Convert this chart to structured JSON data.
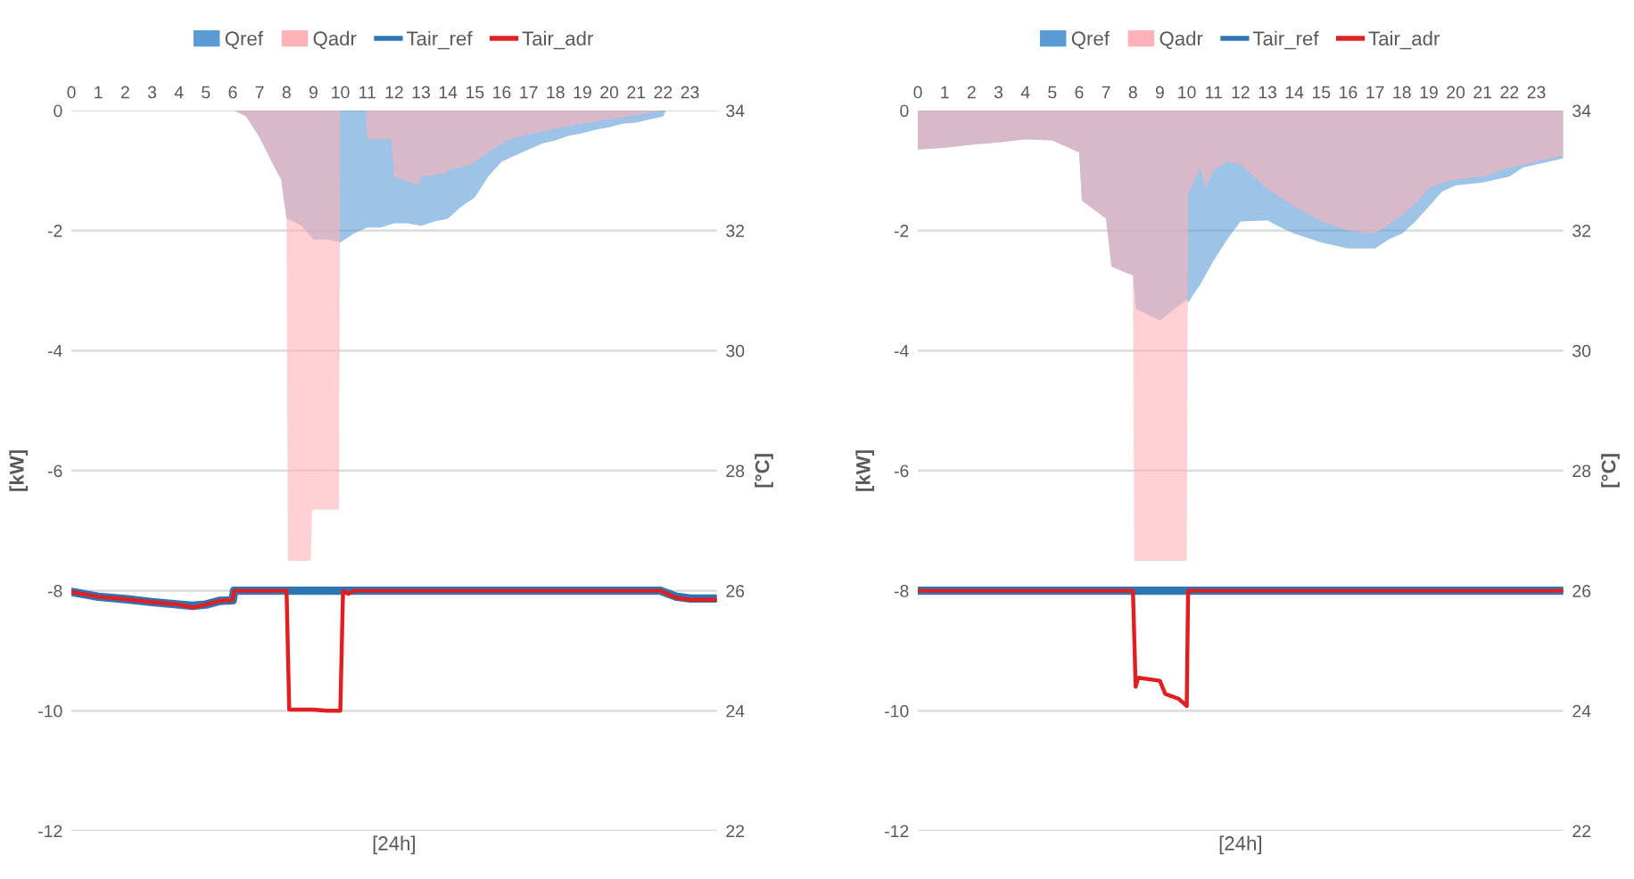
{
  "chart_data": [
    {
      "type": "area",
      "xlabel": "[24h]",
      "ylabel": "[kW]",
      "y2label": "[°C]",
      "xlim": [
        0,
        24
      ],
      "xticks": [
        0,
        1,
        2,
        3,
        4,
        5,
        6,
        7,
        8,
        9,
        10,
        11,
        12,
        13,
        14,
        15,
        16,
        17,
        18,
        19,
        20,
        21,
        22,
        23
      ],
      "ylim": [
        -12,
        0
      ],
      "yticks": [
        -12,
        -10,
        -8,
        -6,
        -4,
        -2,
        0
      ],
      "y2lim": [
        22,
        34
      ],
      "y2ticks": [
        22,
        24,
        26,
        28,
        30,
        32,
        34
      ],
      "grid": "y",
      "legend": "top",
      "series": [
        {
          "name": "Qref",
          "color": "#5b9bd5",
          "x": [
            6.05,
            6.5,
            7,
            7.5,
            7.8,
            8,
            8.5,
            9,
            9.5,
            10,
            10.5,
            11,
            11.5,
            12,
            12.5,
            13,
            13.5,
            14,
            14.5,
            15,
            15.5,
            16,
            16.5,
            17,
            17.5,
            18,
            18.5,
            19,
            19.5,
            20,
            20.5,
            21,
            21.5,
            22,
            22.1
          ],
          "values": [
            0,
            -0.1,
            -0.45,
            -0.9,
            -1.15,
            -1.8,
            -1.9,
            -2.15,
            -2.15,
            -2.2,
            -2.05,
            -1.95,
            -1.95,
            -1.88,
            -1.88,
            -1.92,
            -1.85,
            -1.8,
            -1.6,
            -1.45,
            -1.1,
            -0.85,
            -0.75,
            -0.65,
            -0.55,
            -0.5,
            -0.42,
            -0.38,
            -0.32,
            -0.28,
            -0.22,
            -0.2,
            -0.15,
            -0.1,
            0
          ]
        },
        {
          "name": "Qadr",
          "color": "#ffb3b8",
          "x": [
            6.05,
            6.5,
            7,
            7.5,
            7.8,
            8,
            8.05,
            8.9,
            8.95,
            9.95,
            10,
            10.95,
            11,
            11.9,
            12,
            12.9,
            13,
            13.9,
            14,
            14.9,
            15,
            15.5,
            16,
            16.5,
            17,
            18,
            19,
            20,
            21,
            21.5,
            22
          ],
          "values": [
            0,
            -0.1,
            -0.45,
            -0.9,
            -1.15,
            -1.8,
            -7.5,
            -7.5,
            -6.65,
            -6.65,
            0,
            0,
            -0.48,
            -0.48,
            -1.1,
            -1.25,
            -1.1,
            -1.05,
            -1.0,
            -0.9,
            -0.85,
            -0.7,
            -0.55,
            -0.45,
            -0.4,
            -0.3,
            -0.22,
            -0.15,
            -0.08,
            -0.03,
            0
          ]
        },
        {
          "name": "Tair_ref",
          "type": "line",
          "axis": "y2",
          "color": "#2e75b6",
          "x": [
            0,
            1,
            2,
            3,
            4,
            4.5,
            5,
            5.5,
            6,
            6.05,
            21.9,
            22.5,
            23,
            24
          ],
          "values": [
            25.98,
            25.9,
            25.86,
            25.81,
            25.77,
            25.75,
            25.77,
            25.83,
            25.84,
            26,
            26,
            25.9,
            25.87,
            25.87
          ]
        },
        {
          "name": "Tair_adr",
          "type": "line",
          "axis": "y2",
          "color": "#e02020",
          "x": [
            0,
            1,
            2,
            3,
            4,
            4.5,
            5,
            5.5,
            6,
            6.05,
            8,
            8.1,
            9,
            9.5,
            10,
            10.1,
            10.3,
            10.5,
            21.9,
            22.5,
            23,
            24
          ],
          "values": [
            25.98,
            25.9,
            25.86,
            25.81,
            25.77,
            25.72,
            25.77,
            25.83,
            25.84,
            26,
            26,
            24.02,
            24.02,
            24.0,
            24.0,
            26,
            25.95,
            26,
            26,
            25.88,
            25.85,
            25.85
          ]
        }
      ]
    },
    {
      "type": "area",
      "xlabel": "[24h]",
      "ylabel": "[kW]",
      "y2label": "[°C]",
      "xlim": [
        0,
        24
      ],
      "xticks": [
        0,
        1,
        2,
        3,
        4,
        5,
        6,
        7,
        8,
        9,
        10,
        11,
        12,
        13,
        14,
        15,
        16,
        17,
        18,
        19,
        20,
        21,
        22,
        23
      ],
      "ylim": [
        -12,
        0
      ],
      "yticks": [
        -12,
        -10,
        -8,
        -6,
        -4,
        -2,
        0
      ],
      "y2lim": [
        22,
        34
      ],
      "y2ticks": [
        22,
        24,
        26,
        28,
        30,
        32,
        34
      ],
      "grid": "y",
      "legend": "top",
      "series": [
        {
          "name": "Qref",
          "color": "#5b9bd5",
          "x": [
            0,
            1,
            2,
            3,
            4,
            5,
            5.5,
            6,
            6.1,
            7,
            7.2,
            8,
            8.1,
            9,
            10,
            10.05,
            10.5,
            11,
            11.5,
            12,
            13,
            13.5,
            14,
            15,
            16,
            17,
            17.5,
            18,
            18.5,
            19,
            19.5,
            20,
            21,
            22,
            22.5,
            23,
            24
          ],
          "values": [
            -0.65,
            -0.62,
            -0.57,
            -0.53,
            -0.48,
            -0.5,
            -0.6,
            -0.7,
            -1.5,
            -1.8,
            -2.6,
            -2.75,
            -3.3,
            -3.5,
            -3.15,
            -3.2,
            -2.9,
            -2.5,
            -2.15,
            -1.85,
            -1.83,
            -1.95,
            -2.05,
            -2.2,
            -2.3,
            -2.3,
            -2.15,
            -2.05,
            -1.85,
            -1.6,
            -1.35,
            -1.25,
            -1.2,
            -1.1,
            -0.95,
            -0.9,
            -0.8
          ]
        },
        {
          "name": "Qadr",
          "color": "#ffb3b8",
          "x": [
            0,
            1,
            2,
            3,
            4,
            5,
            5.5,
            6,
            6.1,
            7,
            7.2,
            8,
            8.05,
            10,
            10.05,
            10.5,
            10.7,
            11,
            11.5,
            12,
            13,
            14,
            15,
            16,
            17,
            17.5,
            18,
            18.5,
            19,
            19.5,
            20,
            21,
            22,
            23,
            24
          ],
          "values": [
            -0.65,
            -0.62,
            -0.57,
            -0.53,
            -0.48,
            -0.5,
            -0.6,
            -0.7,
            -1.5,
            -1.8,
            -2.6,
            -2.75,
            -7.5,
            -7.5,
            -1.4,
            -0.95,
            -1.3,
            -1.0,
            -0.85,
            -0.9,
            -1.3,
            -1.6,
            -1.85,
            -2.0,
            -2.05,
            -1.9,
            -1.75,
            -1.55,
            -1.3,
            -1.2,
            -1.15,
            -1.1,
            -0.95,
            -0.85,
            -0.75
          ]
        },
        {
          "name": "Tair_ref",
          "type": "line",
          "axis": "y2",
          "color": "#2e75b6",
          "x": [
            0,
            24
          ],
          "values": [
            26,
            26
          ]
        },
        {
          "name": "Tair_adr",
          "type": "line",
          "axis": "y2",
          "color": "#e02020",
          "x": [
            0,
            8,
            8.1,
            8.2,
            9,
            9.2,
            9.7,
            10,
            10.05,
            24
          ],
          "values": [
            26,
            26,
            24.4,
            24.55,
            24.5,
            24.28,
            24.2,
            24.08,
            26,
            26
          ]
        }
      ]
    }
  ]
}
